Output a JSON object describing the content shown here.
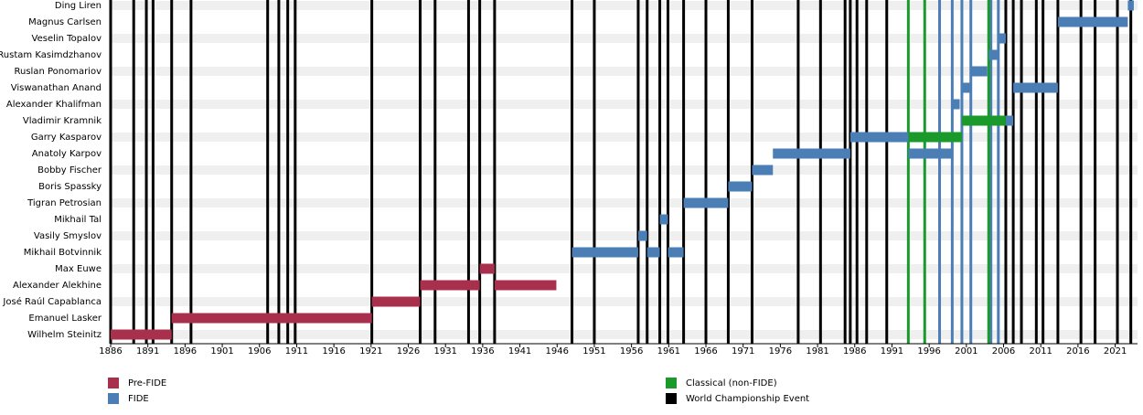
{
  "chart_data": {
    "type": "timeline",
    "categories": [
      "Wilhelm Steinitz",
      "Emanuel Lasker",
      "José Raúl Capablanca",
      "Alexander Alekhine",
      "Max Euwe",
      "Mikhail Botvinnik",
      "Vasily Smyslov",
      "Mikhail Tal",
      "Tigran Petrosian",
      "Boris Spassky",
      "Bobby Fischer",
      "Anatoly Karpov",
      "Garry Kasparov",
      "Vladimir Kramnik",
      "Alexander Khalifman",
      "Viswanathan Anand",
      "Ruslan Ponomariov",
      "Rustam Kasimdzhanov",
      "Veselin Topalov",
      "Magnus Carlsen",
      "Ding Liren"
    ],
    "series": [
      {
        "name": "Pre-FIDE",
        "color": "#a8304d",
        "values": [
          [
            [
              1886,
              1894.2
            ]
          ],
          [
            [
              1894.2,
              1921.1
            ]
          ],
          [
            [
              1921.1,
              1927.6
            ]
          ],
          [
            [
              1927.6,
              1935.6
            ],
            [
              1937.6,
              1945.9
            ]
          ],
          [
            [
              1935.6,
              1937.6
            ]
          ],
          [],
          [],
          [],
          [],
          [],
          [],
          [],
          [],
          [],
          [],
          [],
          [],
          [],
          [],
          [],
          []
        ],
        "events": []
      },
      {
        "name": "FIDE",
        "color": "#4a7eb5",
        "values": [
          [],
          [],
          [],
          [],
          [],
          [
            [
              1948,
              1956.9
            ],
            [
              1958.1,
              1959.8
            ],
            [
              1960.9,
              1963
            ]
          ],
          [
            [
              1956.9,
              1958.1
            ]
          ],
          [
            [
              1959.8,
              1960.9
            ]
          ],
          [
            [
              1963,
              1969
            ]
          ],
          [
            [
              1969,
              1972.2
            ]
          ],
          [
            [
              1972.2,
              1975
            ]
          ],
          [
            [
              1975,
              1985.4
            ],
            [
              1993.2,
              1999.1
            ]
          ],
          [
            [
              1985.4,
              1993.2
            ]
          ],
          [
            [
              2006.3,
              2007.3
            ]
          ],
          [
            [
              1999.1,
              2000.1
            ]
          ],
          [
            [
              2000.4,
              2001.6
            ],
            [
              2007.3,
              2013.3
            ]
          ],
          [
            [
              2001.6,
              2003.8
            ]
          ],
          [
            [
              2004,
              2005.3
            ]
          ],
          [
            [
              2005.3,
              2006.3
            ]
          ],
          [
            [
              2013.3,
              2022.7
            ]
          ],
          [
            [
              2022.7,
              2023.5
            ]
          ]
        ],
        "events": [
          1997.4,
          1999.1,
          2000.4,
          2001.6,
          2004.3,
          2005.3
        ]
      },
      {
        "name": "Classical (non-FIDE)",
        "color": "#1a9a2a",
        "values": [
          [],
          [],
          [],
          [],
          [],
          [],
          [],
          [],
          [],
          [],
          [],
          [],
          [
            [
              1993.2,
              2000.4
            ]
          ],
          [
            [
              2000.4,
              2006.3
            ]
          ],
          [],
          [],
          [],
          [],
          [],
          [],
          []
        ],
        "events": [
          1993.2,
          1995.4,
          2004.0
        ]
      }
    ],
    "events": {
      "name": "World Championship Event",
      "color": "#000000",
      "values": [
        1886,
        1889.1,
        1890.8,
        1891.7,
        1894.2,
        1896.8,
        1907.1,
        1908.6,
        1909.8,
        1910.8,
        1921.1,
        1927.6,
        1929.6,
        1934.1,
        1935.6,
        1937.6,
        1948,
        1951,
        1956.9,
        1958.1,
        1959.8,
        1960.9,
        1963,
        1966,
        1969,
        1972.2,
        1978.4,
        1981.4,
        1984.7,
        1985.4,
        1986.3,
        1987.6,
        1990.3,
        2006.3,
        2007.3,
        2008.4,
        2010.4,
        2011.3,
        2013.3,
        2016.4,
        2018.3,
        2021.3,
        2023.1
      ]
    },
    "xlim": [
      1886,
      2024
    ],
    "xticks": [
      1886,
      1891,
      1896,
      1901,
      1906,
      1911,
      1916,
      1921,
      1926,
      1931,
      1936,
      1941,
      1946,
      1951,
      1956,
      1961,
      1966,
      1971,
      1976,
      1981,
      1986,
      1991,
      1996,
      2001,
      2006,
      2011,
      2016,
      2021
    ]
  }
}
